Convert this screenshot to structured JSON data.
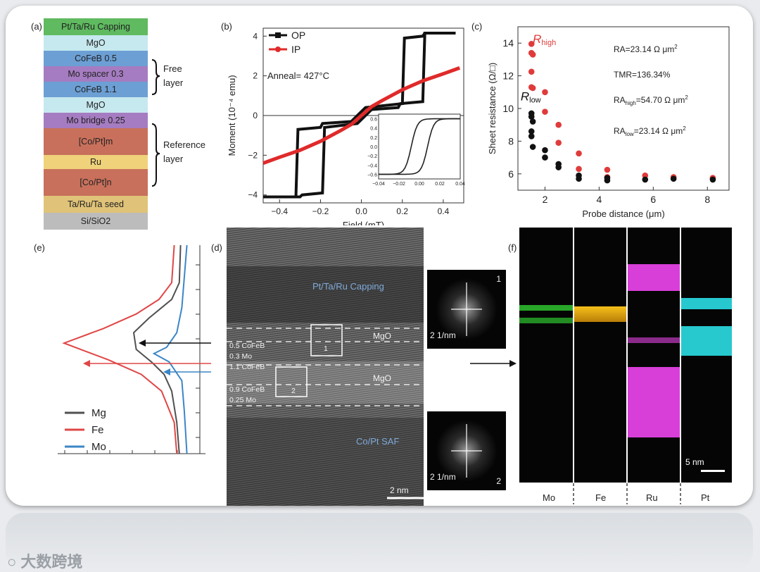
{
  "panels": {
    "a": "(a)",
    "b": "(b)",
    "c": "(c)",
    "d": "(d)",
    "e": "(e)",
    "f": "(f)"
  },
  "stack": {
    "layers": [
      {
        "label": "Pt/Ta/Ru Capping",
        "color": "#5fba60"
      },
      {
        "label": "MgO",
        "color": "#c6e9ef"
      },
      {
        "label": "CoFeB 0.5",
        "color": "#6c9fd4"
      },
      {
        "label": "Mo spacer 0.3",
        "color": "#a57cc1"
      },
      {
        "label": "CoFeB 1.1",
        "color": "#6c9fd4"
      },
      {
        "label": "MgO",
        "color": "#c6e9ef"
      },
      {
        "label": "Mo bridge 0.25",
        "color": "#a57cc1"
      },
      {
        "label": "[Co/Pt]m",
        "color": "#c8705c"
      },
      {
        "label": "Ru",
        "color": "#efd27a"
      },
      {
        "label": "[Co/Pt]n",
        "color": "#c8705c"
      },
      {
        "label": "Ta/Ru/Ta seed",
        "color": "#e0c378"
      },
      {
        "label": "Si/SiO2",
        "color": "#bcbcbc"
      }
    ],
    "free_layer": [
      "Free",
      "layer"
    ],
    "reference_layer": [
      "Reference",
      "layer"
    ]
  },
  "chart_data": [
    {
      "type": "line",
      "panel": "b",
      "xlabel": "Field (mT)",
      "ylabel": "Moment (10⁻⁴ emu)",
      "xlim": [
        -0.48,
        0.5
      ],
      "ylim": [
        -4.4,
        4.4
      ],
      "xticks": [
        -0.4,
        -0.2,
        0.0,
        0.2,
        0.4
      ],
      "xtick_labels": [
        "−0.4",
        "−0.2",
        "0.0",
        "0.2",
        "0.4"
      ],
      "yticks": [
        -4,
        -2,
        0,
        2,
        4
      ],
      "ytick_labels": [
        "−4",
        "−2",
        "0",
        "2",
        "4"
      ],
      "annotation": "Anneal= 427°C",
      "series": [
        {
          "name": "OP",
          "color": "#111111",
          "up_x": [
            -0.48,
            -0.32,
            -0.31,
            -0.2,
            -0.19,
            -0.05,
            0.02,
            0.2,
            0.21,
            0.3,
            0.31,
            0.46
          ],
          "up_y": [
            -4.1,
            -4.1,
            -0.7,
            -0.6,
            -0.4,
            -0.3,
            0.4,
            0.6,
            3.9,
            4.0,
            4.15,
            4.15
          ],
          "down_x": [
            0.46,
            0.31,
            0.3,
            0.19,
            0.18,
            0.05,
            -0.02,
            -0.18,
            -0.19,
            -0.29,
            -0.3,
            -0.48
          ],
          "down_y": [
            4.15,
            4.15,
            0.7,
            0.6,
            0.4,
            0.3,
            -0.4,
            -0.6,
            -3.9,
            -4.0,
            -4.1,
            -4.1
          ]
        },
        {
          "name": "IP",
          "color": "#e02a2a",
          "x": [
            -0.48,
            -0.4,
            -0.3,
            -0.2,
            -0.1,
            -0.05,
            0.0,
            0.05,
            0.1,
            0.2,
            0.3,
            0.4,
            0.48
          ],
          "y": [
            -2.4,
            -2.1,
            -1.75,
            -1.3,
            -0.75,
            -0.45,
            0.0,
            0.45,
            0.75,
            1.3,
            1.75,
            2.1,
            2.4
          ]
        }
      ],
      "inset": {
        "xlim": [
          -0.04,
          0.04
        ],
        "ylim": [
          -0.7,
          0.7
        ],
        "xticks": [
          -0.04,
          -0.02,
          0.0,
          0.02,
          0.04
        ],
        "xtick_labels": [
          "−0.04",
          "−0.02",
          "0.00",
          "0.02",
          "0.04"
        ],
        "yticks": [
          -0.6,
          -0.4,
          -0.2,
          0.0,
          0.2,
          0.4,
          0.6
        ],
        "ytick_labels": [
          "−0.6",
          "−0.4",
          "−0.2",
          "0.0",
          "0.2",
          "0.4",
          "0.6"
        ]
      }
    },
    {
      "type": "scatter",
      "panel": "c",
      "xlabel": "Probe distance (μm)",
      "ylabel": "Sheet resistance (Ω/□)",
      "xlim": [
        1.0,
        8.8
      ],
      "ylim": [
        5.0,
        15.0
      ],
      "xticks": [
        2,
        4,
        6,
        8
      ],
      "yticks": [
        6,
        8,
        10,
        12,
        14
      ],
      "series": [
        {
          "name": "R_high",
          "color": "#e03b3b",
          "x": [
            1.5,
            1.5,
            1.55,
            1.5,
            1.5,
            1.55,
            2.0,
            2.0,
            2.5,
            2.5,
            3.25,
            3.25,
            4.3,
            4.3,
            5.7,
            6.75,
            8.2
          ],
          "y": [
            13.95,
            13.4,
            13.3,
            12.25,
            11.3,
            11.25,
            11.0,
            9.8,
            9.0,
            7.9,
            7.25,
            6.3,
            6.25,
            5.8,
            5.9,
            5.8,
            5.75
          ]
        },
        {
          "name": "R_low",
          "color": "#111111",
          "x": [
            1.5,
            1.5,
            1.55,
            1.5,
            1.5,
            1.55,
            2.0,
            2.0,
            2.5,
            2.5,
            3.25,
            3.25,
            4.3,
            4.3,
            5.7,
            6.75,
            8.2
          ],
          "y": [
            9.7,
            9.5,
            9.2,
            8.6,
            8.3,
            7.65,
            7.45,
            7.0,
            6.6,
            6.4,
            5.9,
            5.7,
            5.75,
            5.6,
            5.65,
            5.7,
            5.65
          ]
        }
      ],
      "series_labels": {
        "high": "R",
        "high_sub": "high",
        "low": "R",
        "low_sub": "low"
      },
      "annotations": [
        {
          "pre": "RA=23.14 Ω μm",
          "sup": "2"
        },
        {
          "pre": "TMR=136.34%",
          "sup": ""
        },
        {
          "pre": "RA",
          "sub": "high",
          "mid": "=54.70 Ω μm",
          "sup": "2"
        },
        {
          "pre": "RA",
          "sub": "low",
          "mid": "=23.14 Ω μm",
          "sup": "2"
        }
      ]
    },
    {
      "type": "line",
      "panel": "e",
      "series": [
        {
          "name": "Mg",
          "color": "#505050",
          "x": [
            0.97,
            0.96,
            0.9,
            0.82,
            0.72,
            0.6,
            0.62,
            0.74,
            0.84,
            0.9,
            0.94,
            0.96
          ],
          "y": [
            0.0,
            0.18,
            0.26,
            0.3,
            0.35,
            0.42,
            0.5,
            0.56,
            0.62,
            0.7,
            0.85,
            1.0
          ]
        },
        {
          "name": "Fe",
          "color": "#e04646",
          "x": [
            0.92,
            0.9,
            0.8,
            0.62,
            0.36,
            0.05,
            0.4,
            0.66,
            0.82,
            0.92,
            0.94
          ],
          "y": [
            0.0,
            0.18,
            0.26,
            0.33,
            0.4,
            0.47,
            0.55,
            0.62,
            0.7,
            0.85,
            1.0
          ]
        },
        {
          "name": "Mo",
          "color": "#3c86c6",
          "x": [
            1.02,
            1.0,
            0.98,
            0.94,
            0.86,
            0.76,
            0.88,
            0.98,
            1.0,
            1.02
          ],
          "y": [
            0.0,
            0.15,
            0.3,
            0.42,
            0.49,
            0.52,
            0.56,
            0.65,
            0.8,
            1.0
          ]
        }
      ]
    }
  ],
  "tem": {
    "capping": "Pt/Ta/Ru Capping",
    "mgo_top": "MgO",
    "mgo_bottom": "MgO",
    "saf": "Co/Pt SAF",
    "layers": [
      "0.5 CoFeB",
      "0.3 Mo",
      "1.1 CoFeB",
      "0.9 CoFeB",
      "0.25 Mo"
    ],
    "box1": "1",
    "box2": "2",
    "scale": "2 nm",
    "fft1_label": "1",
    "fft2_label": "2",
    "fft_scale": "2 1/nm"
  },
  "eds": {
    "labels": [
      "Mo",
      "Fe",
      "Ru",
      "Pt"
    ],
    "scale": "5 nm",
    "colors": {
      "Mo": "#38d838",
      "Fe": "#f2b510",
      "Ru": "#d83ed8",
      "Pt": "#2ad2d8"
    }
  },
  "watermark": "大数跨境"
}
